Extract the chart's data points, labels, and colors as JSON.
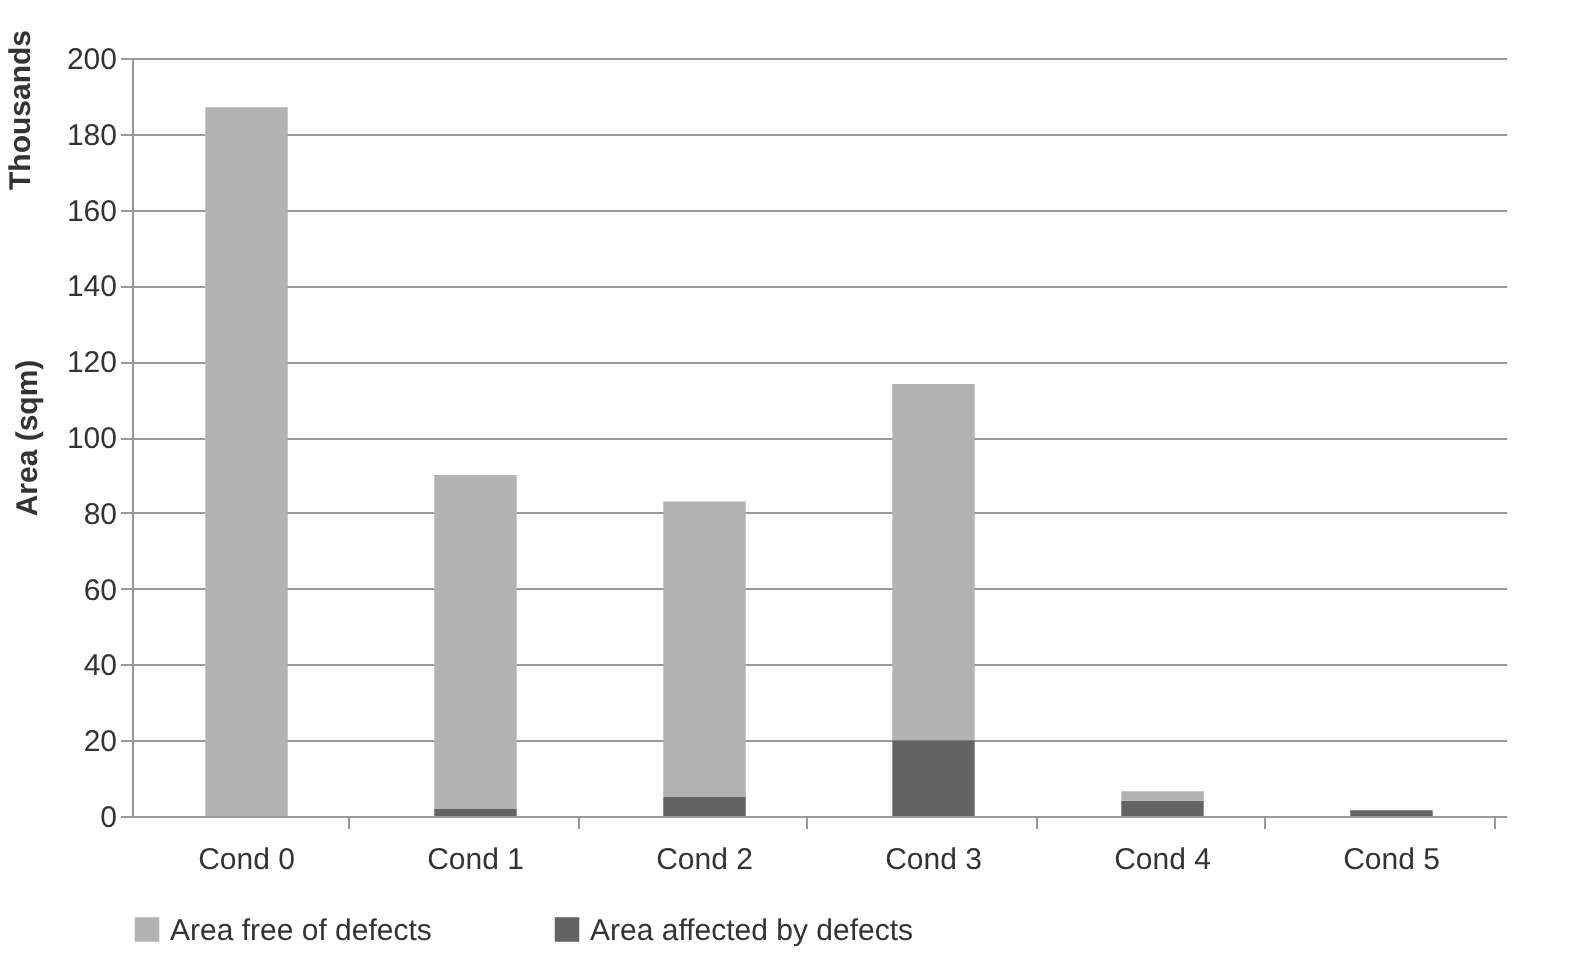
{
  "chart_data": {
    "type": "bar",
    "stacked": true,
    "ylabel": "Area (sqm)",
    "annotations": [
      "Thousands"
    ],
    "categories": [
      "Cond 0",
      "Cond 1",
      "Cond 2",
      "Cond 3",
      "Cond 4",
      "Cond 5"
    ],
    "series": [
      {
        "name": "Area affected by defects",
        "color": "#636363",
        "values": [
          0,
          2,
          5,
          20,
          4,
          1.5
        ]
      },
      {
        "name": "Area free of defects",
        "color": "#b2b2b2",
        "values": [
          187,
          88,
          78,
          94,
          2.5,
          0
        ]
      }
    ],
    "ylim": [
      0,
      200
    ],
    "yticks": [
      0,
      20,
      40,
      60,
      80,
      100,
      120,
      140,
      160,
      180,
      200
    ],
    "grid": "y",
    "legend": "bottom"
  }
}
